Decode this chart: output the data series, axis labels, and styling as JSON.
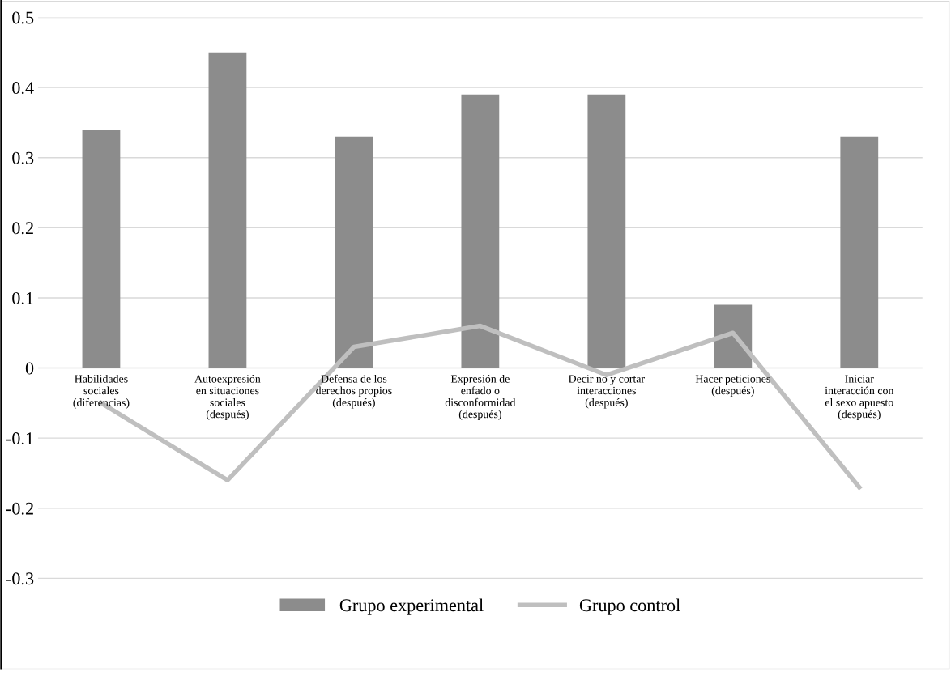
{
  "chart_data": {
    "type": "bar",
    "categories": [
      "Habilidades\nsociales\n(diferencias)",
      "Autoexpresión\nen situaciones\nsociales\n(después)",
      "Defensa de los\nderechos propios\n(después)",
      "Expresión de\nenfado o\ndisconformidad\n(después)",
      "Decir no y cortar\ninteracciones\n(después)",
      "Hacer peticiones\n(después)",
      "Iniciar\ninteracción con\nel sexo apuesto\n(después)"
    ],
    "series": [
      {
        "name": "Grupo experimental",
        "color": "#8c8c8c",
        "values": [
          0.34,
          0.45,
          0.33,
          0.39,
          0.39,
          0.09,
          0.33
        ]
      },
      {
        "name": "Grupo control",
        "type": "line",
        "color": "#bfbfbf",
        "values": [
          -0.05,
          -0.16,
          0.03,
          0.06,
          -0.01,
          0.05,
          -0.17
        ]
      }
    ],
    "ylim": [
      -0.35,
      0.5
    ],
    "yticks": [
      -0.3,
      -0.2,
      -0.1,
      0,
      0.1,
      0.2,
      0.3,
      0.4,
      0.5
    ],
    "grid": "y",
    "legend": "bottom"
  }
}
